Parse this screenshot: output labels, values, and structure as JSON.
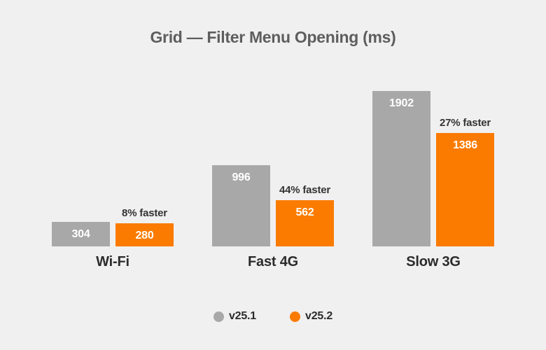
{
  "title": "Grid — Filter Menu Opening (ms)",
  "colors": {
    "background": "#F0F0F0",
    "title": "#5E5E5E",
    "category_label": "#2B2B2B",
    "annotation": "#333333",
    "value_label": "#FFFFFF",
    "series_v25_1": "#A8A8A8",
    "series_v25_2": "#FA7B00"
  },
  "chart_data": {
    "type": "bar",
    "title": "Grid — Filter Menu Opening (ms)",
    "unit": "ms",
    "categories": [
      "Wi-Fi",
      "Fast 4G",
      "Slow 3G"
    ],
    "series": [
      {
        "name": "v25.1",
        "color": "#A8A8A8",
        "values": [
          304,
          996,
          1902
        ]
      },
      {
        "name": "v25.2",
        "color": "#FA7B00",
        "values": [
          280,
          562,
          1386
        ]
      }
    ],
    "annotations": [
      "8% faster",
      "44% faster",
      "27% faster"
    ],
    "ylim": [
      0,
      1902
    ],
    "grid": false,
    "legend_position": "bottom",
    "value_labels": "inside-top"
  }
}
